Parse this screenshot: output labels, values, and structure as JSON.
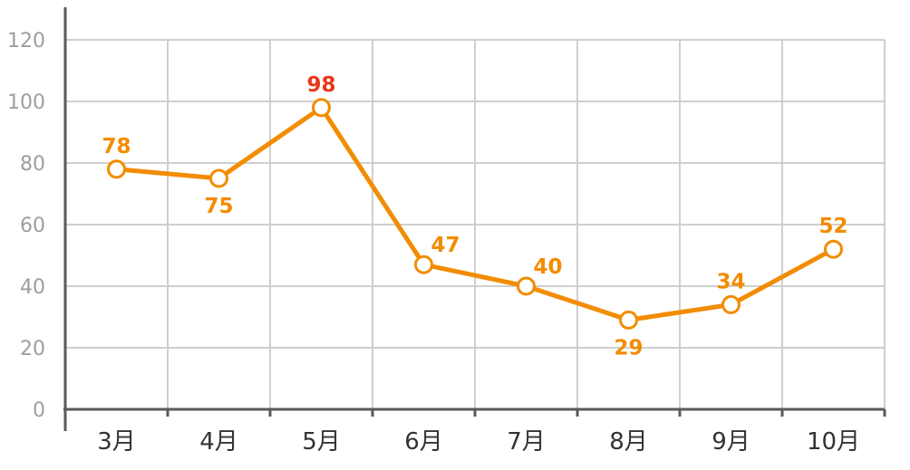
{
  "chart_data": {
    "type": "line",
    "categories": [
      "3月",
      "4月",
      "5月",
      "6月",
      "7月",
      "8月",
      "9月",
      "10月"
    ],
    "series": [
      {
        "values": [
          78,
          75,
          98,
          47,
          40,
          29,
          34,
          52
        ],
        "labels": [
          "78",
          "75",
          "98",
          "47",
          "40",
          "29",
          "34",
          "52"
        ]
      }
    ],
    "yticks": [
      "0",
      "20",
      "40",
      "60",
      "80",
      "100",
      "120"
    ],
    "ylim": [
      0,
      120
    ],
    "grid": true,
    "colors": {
      "line": "#f28c00",
      "label": "#f28c00",
      "highlight_label": "#e8371a",
      "marker_fill": "#ffffff"
    },
    "highlight_index": 2,
    "label_placement": [
      "above",
      "below",
      "above",
      "above-right",
      "above-right",
      "below",
      "above",
      "above"
    ]
  }
}
